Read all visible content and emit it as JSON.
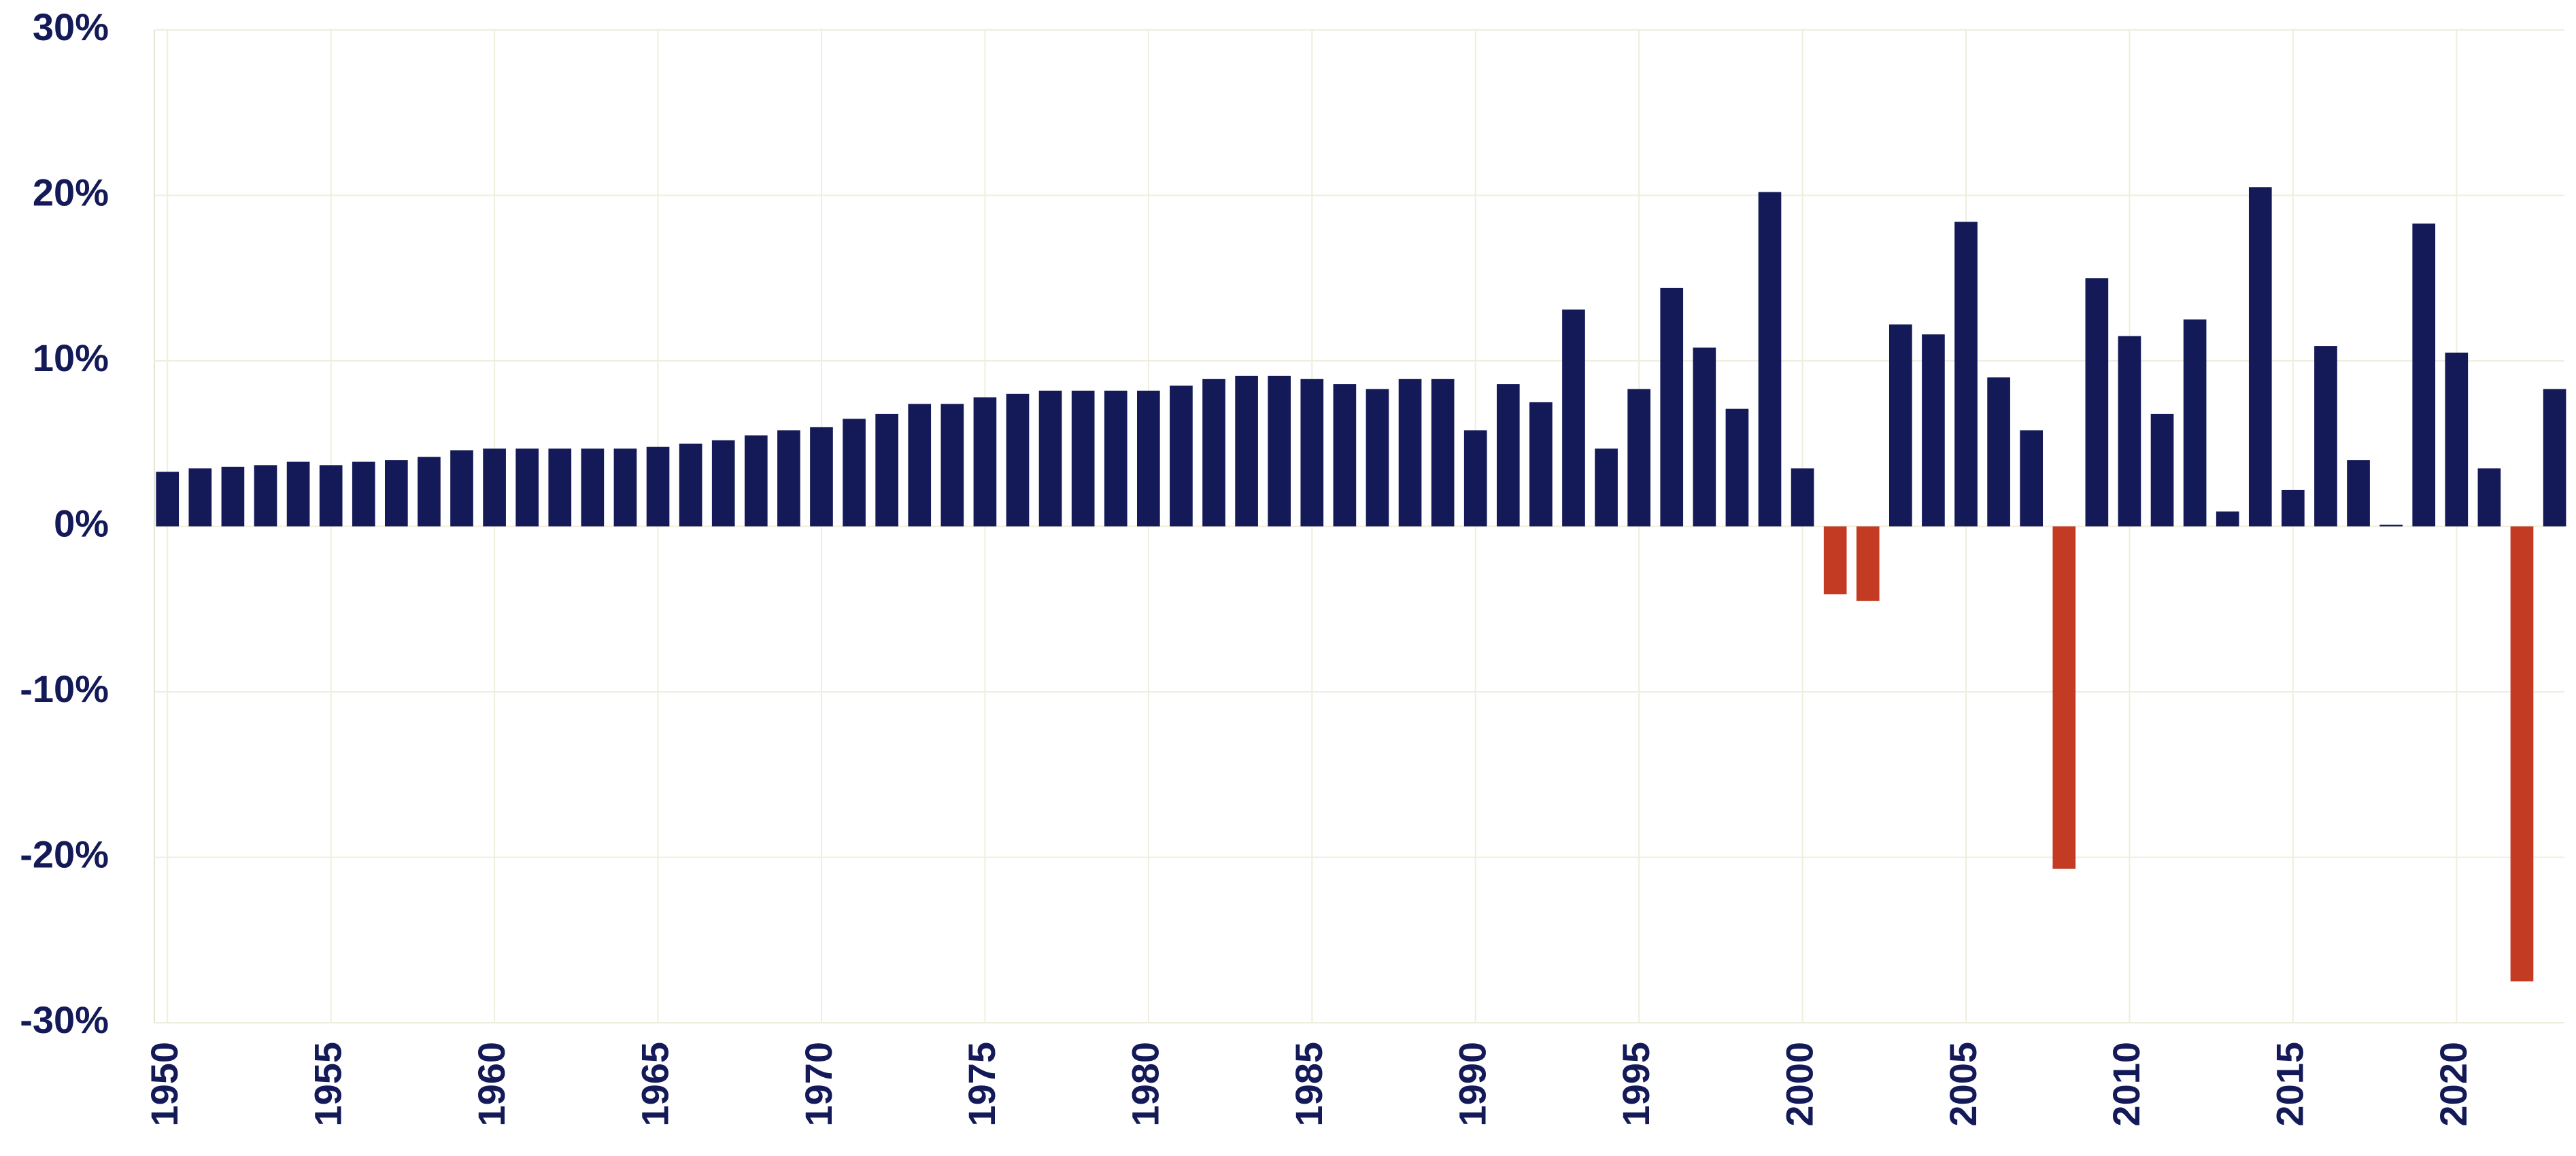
{
  "chart_data": {
    "type": "bar",
    "x": [
      1950,
      1951,
      1952,
      1953,
      1954,
      1955,
      1956,
      1957,
      1958,
      1959,
      1960,
      1961,
      1962,
      1963,
      1964,
      1965,
      1966,
      1967,
      1968,
      1969,
      1970,
      1971,
      1972,
      1973,
      1974,
      1975,
      1976,
      1977,
      1978,
      1979,
      1980,
      1981,
      1982,
      1983,
      1984,
      1985,
      1986,
      1987,
      1988,
      1989,
      1990,
      1991,
      1992,
      1993,
      1994,
      1995,
      1996,
      1997,
      1998,
      1999,
      2000,
      2001,
      2002,
      2003,
      2004,
      2005,
      2006,
      2007,
      2008,
      2009,
      2010,
      2011,
      2012,
      2013,
      2014,
      2015,
      2016,
      2017,
      2018,
      2019,
      2020,
      2021,
      2022,
      2023
    ],
    "values": [
      3.3,
      3.5,
      3.6,
      3.7,
      3.9,
      3.7,
      3.9,
      4.0,
      4.2,
      4.6,
      4.7,
      4.7,
      4.7,
      4.7,
      4.7,
      4.8,
      5.0,
      5.2,
      5.5,
      5.8,
      6.0,
      6.5,
      6.8,
      7.4,
      7.4,
      7.8,
      8.0,
      8.2,
      8.2,
      8.2,
      8.2,
      8.5,
      8.9,
      9.1,
      9.1,
      8.9,
      8.6,
      8.3,
      8.9,
      8.9,
      5.8,
      8.6,
      7.5,
      13.1,
      4.7,
      8.3,
      14.4,
      10.8,
      7.1,
      20.2,
      3.5,
      -4.1,
      -4.5,
      12.2,
      11.6,
      18.4,
      9.0,
      5.8,
      -20.7,
      15.0,
      11.5,
      6.8,
      12.5,
      0.9,
      20.5,
      2.2,
      10.9,
      4.0,
      0.1,
      18.3,
      10.5,
      3.5,
      -27.5,
      8.3
    ],
    "color": "#131a57",
    "negative_color": "#c23b22",
    "xlim": [
      1949.6,
      2023.3
    ],
    "xticks": [
      1950,
      1955,
      1960,
      1965,
      1970,
      1975,
      1980,
      1985,
      1990,
      1995,
      2000,
      2005,
      2010,
      2015,
      2020
    ],
    "ylim": [
      -30,
      30
    ],
    "yticks": [
      {
        "value": -30,
        "label": "-30%"
      },
      {
        "value": -20,
        "label": "-20%"
      },
      {
        "value": -10,
        "label": "-10%"
      },
      {
        "value": 0,
        "label": "0%"
      },
      {
        "value": 10,
        "label": "10%"
      },
      {
        "value": 20,
        "label": "20%"
      },
      {
        "value": 30,
        "label": "30%"
      }
    ],
    "grid": true
  }
}
